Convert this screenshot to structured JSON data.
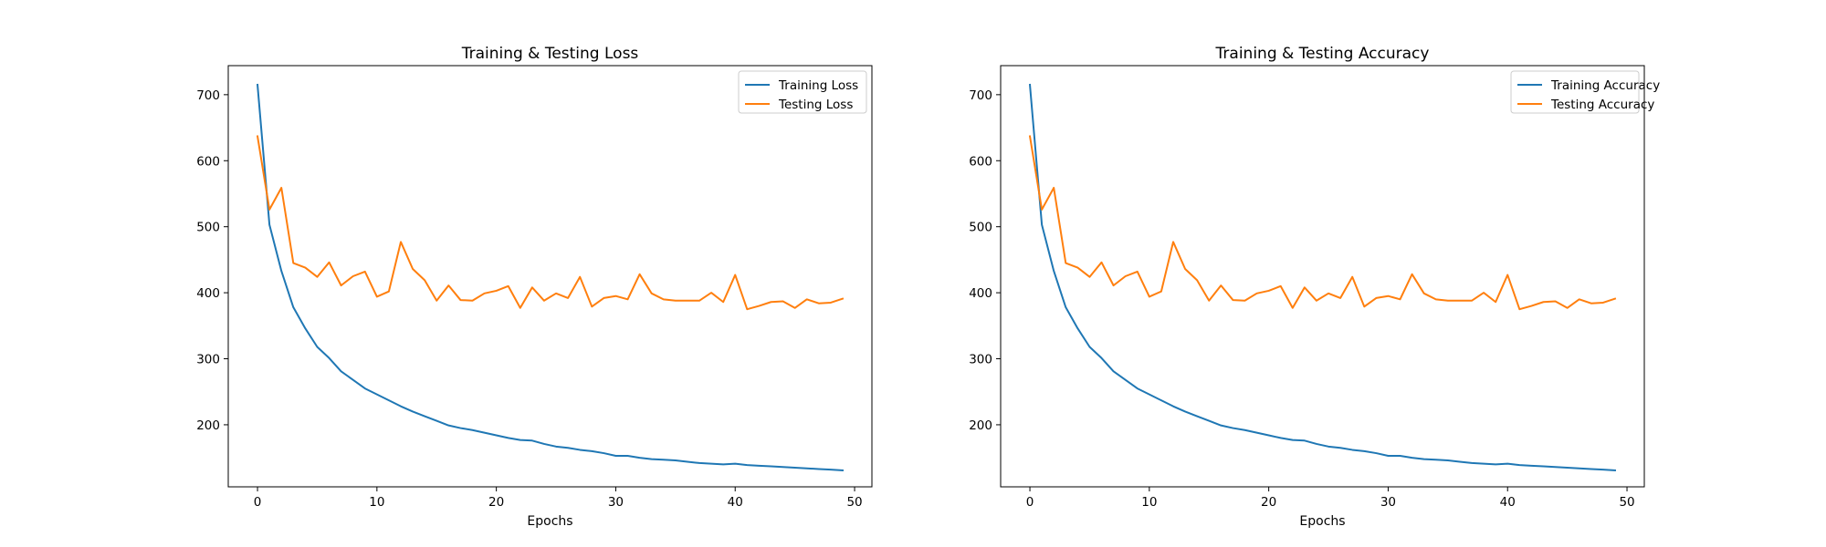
{
  "chart_data": [
    {
      "type": "line",
      "title": "Training & Testing Loss",
      "xlabel": "Epochs",
      "ylabel": "",
      "xlim": [
        -2.45,
        51.45
      ],
      "ylim": [
        106,
        744
      ],
      "xticks": [
        0,
        10,
        20,
        30,
        40,
        50
      ],
      "yticks": [
        200,
        300,
        400,
        500,
        600,
        700
      ],
      "legend": "top-right",
      "grid": false,
      "series": [
        {
          "name": "Training Loss",
          "color": "#1f77b4",
          "x": [
            0,
            1,
            2,
            3,
            4,
            5,
            6,
            7,
            8,
            9,
            10,
            11,
            12,
            13,
            14,
            15,
            16,
            17,
            18,
            19,
            20,
            21,
            22,
            23,
            24,
            25,
            26,
            27,
            28,
            29,
            30,
            31,
            32,
            33,
            34,
            35,
            36,
            37,
            38,
            39,
            40,
            41,
            42,
            43,
            44,
            45,
            46,
            47,
            48,
            49
          ],
          "values": [
            715,
            503,
            433,
            378,
            346,
            318,
            301,
            281,
            268,
            255,
            246,
            237,
            228,
            220,
            213,
            206,
            199,
            195,
            192,
            188,
            184,
            180,
            177,
            176,
            171,
            167,
            165,
            162,
            160,
            157,
            153,
            153,
            150,
            148,
            147,
            146,
            144,
            142,
            141,
            140,
            141,
            139,
            138,
            137,
            136,
            135,
            134,
            133,
            132,
            131
          ]
        },
        {
          "name": "Testing Loss",
          "color": "#ff7f0e",
          "x": [
            0,
            1,
            2,
            3,
            4,
            5,
            6,
            7,
            8,
            9,
            10,
            11,
            12,
            13,
            14,
            15,
            16,
            17,
            18,
            19,
            20,
            21,
            22,
            23,
            24,
            25,
            26,
            27,
            28,
            29,
            30,
            31,
            32,
            33,
            34,
            35,
            36,
            37,
            38,
            39,
            40,
            41,
            42,
            43,
            44,
            45,
            46,
            47,
            48,
            49
          ],
          "values": [
            637,
            526,
            559,
            445,
            438,
            424,
            446,
            411,
            425,
            432,
            394,
            402,
            477,
            436,
            419,
            388,
            411,
            389,
            388,
            399,
            403,
            410,
            377,
            408,
            388,
            399,
            392,
            424,
            379,
            392,
            395,
            390,
            428,
            399,
            390,
            388,
            388,
            388,
            400,
            386,
            427,
            375,
            380,
            386,
            387,
            377,
            390,
            384,
            385,
            391
          ]
        }
      ]
    },
    {
      "type": "line",
      "title": "Training & Testing Accuracy",
      "xlabel": "Epochs",
      "ylabel": "",
      "xlim": [
        -2.45,
        51.45
      ],
      "ylim": [
        106,
        744
      ],
      "xticks": [
        0,
        10,
        20,
        30,
        40,
        50
      ],
      "yticks": [
        200,
        300,
        400,
        500,
        600,
        700
      ],
      "legend": "top-right",
      "grid": false,
      "series": [
        {
          "name": "Training Accuracy",
          "color": "#1f77b4",
          "x": [
            0,
            1,
            2,
            3,
            4,
            5,
            6,
            7,
            8,
            9,
            10,
            11,
            12,
            13,
            14,
            15,
            16,
            17,
            18,
            19,
            20,
            21,
            22,
            23,
            24,
            25,
            26,
            27,
            28,
            29,
            30,
            31,
            32,
            33,
            34,
            35,
            36,
            37,
            38,
            39,
            40,
            41,
            42,
            43,
            44,
            45,
            46,
            47,
            48,
            49
          ],
          "values": [
            715,
            503,
            433,
            378,
            346,
            318,
            301,
            281,
            268,
            255,
            246,
            237,
            228,
            220,
            213,
            206,
            199,
            195,
            192,
            188,
            184,
            180,
            177,
            176,
            171,
            167,
            165,
            162,
            160,
            157,
            153,
            153,
            150,
            148,
            147,
            146,
            144,
            142,
            141,
            140,
            141,
            139,
            138,
            137,
            136,
            135,
            134,
            133,
            132,
            131
          ]
        },
        {
          "name": "Testing Accuracy",
          "color": "#ff7f0e",
          "x": [
            0,
            1,
            2,
            3,
            4,
            5,
            6,
            7,
            8,
            9,
            10,
            11,
            12,
            13,
            14,
            15,
            16,
            17,
            18,
            19,
            20,
            21,
            22,
            23,
            24,
            25,
            26,
            27,
            28,
            29,
            30,
            31,
            32,
            33,
            34,
            35,
            36,
            37,
            38,
            39,
            40,
            41,
            42,
            43,
            44,
            45,
            46,
            47,
            48,
            49
          ],
          "values": [
            637,
            526,
            559,
            445,
            438,
            424,
            446,
            411,
            425,
            432,
            394,
            402,
            477,
            436,
            419,
            388,
            411,
            389,
            388,
            399,
            403,
            410,
            377,
            408,
            388,
            399,
            392,
            424,
            379,
            392,
            395,
            390,
            428,
            399,
            390,
            388,
            388,
            388,
            400,
            386,
            427,
            375,
            380,
            386,
            387,
            377,
            390,
            384,
            385,
            391
          ]
        }
      ]
    }
  ]
}
